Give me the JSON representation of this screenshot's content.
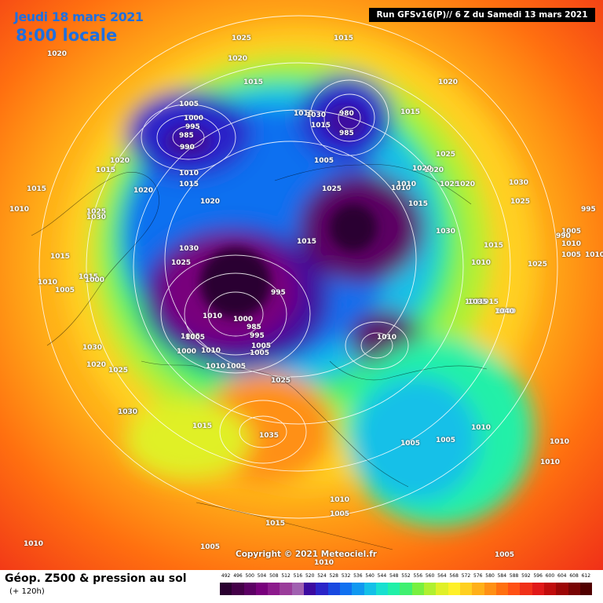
{
  "header": {
    "date_label": "Jeudi 18 mars 2021",
    "time_label": "8:00 locale",
    "run_label": "Run GFSv16(P)// 6 Z du Samedi 13 mars 2021"
  },
  "footer": {
    "title": "Géop. Z500 & pression au sol",
    "subtitle": "(+ 120h)",
    "copyright": "Copyright © 2021 Meteociel.fr"
  },
  "legend": {
    "values": [
      "492",
      "496",
      "500",
      "504",
      "508",
      "512",
      "516",
      "520",
      "524",
      "528",
      "532",
      "536",
      "540",
      "544",
      "548",
      "552",
      "556",
      "560",
      "564",
      "568",
      "572",
      "576",
      "580",
      "584",
      "588",
      "592",
      "596",
      "600",
      "604",
      "608",
      "612"
    ],
    "colors": [
      "#2a0030",
      "#440048",
      "#5c0064",
      "#78007c",
      "#8c1a8c",
      "#9a3c9a",
      "#a060b0",
      "#3c0aa0",
      "#2a24c8",
      "#1848e0",
      "#1070f0",
      "#1098f0",
      "#14c0e8",
      "#18e0d0",
      "#20f0a8",
      "#40f070",
      "#78f040",
      "#b0f030",
      "#e0f028",
      "#fff028",
      "#ffd020",
      "#ffb018",
      "#ff9014",
      "#ff7010",
      "#ff5014",
      "#f03018",
      "#e01818",
      "#c00c0c",
      "#9c0606",
      "#780404",
      "#500000"
    ]
  },
  "pressure_labels": [
    "1025",
    "1015",
    "1020",
    "1020",
    "1015",
    "1005",
    "1000",
    "995",
    "985",
    "990",
    "1020",
    "1015",
    "1020",
    "1015",
    "1010",
    "1015",
    "1010",
    "1025",
    "1030",
    "1020",
    "1010",
    "1015",
    "1000",
    "1005",
    "1015",
    "1030",
    "1025",
    "1010",
    "1005",
    "1000",
    "1010",
    "1000",
    "985",
    "995",
    "1005",
    "995",
    "1015",
    "1025",
    "1015",
    "1030",
    "1025",
    "1030",
    "1020",
    "1010",
    "1005",
    "1005",
    "1025",
    "1005",
    "1010",
    "1030",
    "1015",
    "1010",
    "1020",
    "1030",
    "1025",
    "1020",
    "1015",
    "1010",
    "980",
    "985",
    "1020",
    "1015",
    "1025",
    "1020",
    "1030",
    "1025",
    "1015",
    "1010",
    "1035",
    "1040",
    "995",
    "1005",
    "1010",
    "990",
    "1005",
    "1010",
    "1025",
    "1015",
    "1035",
    "1040",
    "1025",
    "1030",
    "1035",
    "1005",
    "1005",
    "1005",
    "1010",
    "1010",
    "1010",
    "1010",
    "1005",
    "1015",
    "1010",
    "1005",
    "1010",
    "1005",
    "1010"
  ]
}
